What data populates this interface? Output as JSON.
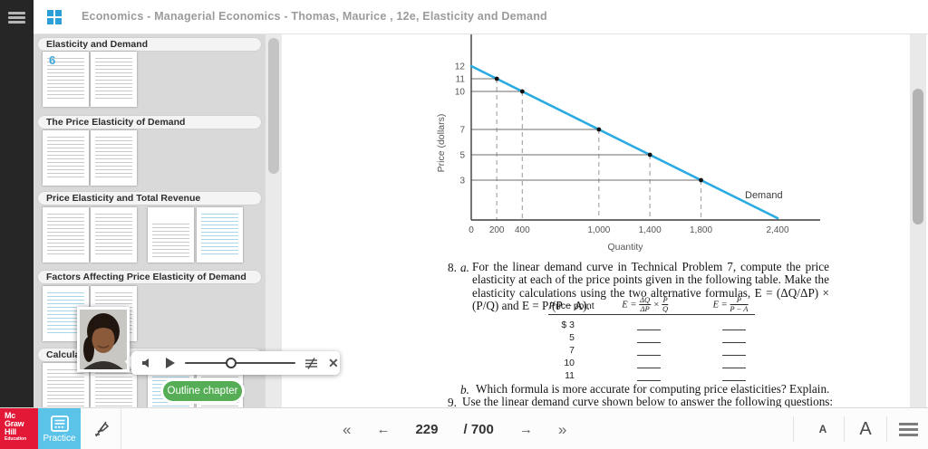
{
  "topbar": {
    "title": "Economics - Managerial Economics - Thomas, Maurice , 12e, Elasticity and Demand"
  },
  "sidebar": {
    "sections": [
      {
        "title": "Elasticity and Demand",
        "chapter_label": "6"
      },
      {
        "title": "The Price Elasticity of Demand"
      },
      {
        "title": "Price Elasticity and Total Revenue"
      },
      {
        "title": "Factors Affecting Price Elasticity of Demand"
      },
      {
        "title": "Calcula"
      }
    ]
  },
  "video": {
    "outline_button_label": "Outline chapter",
    "close_glyph": "✕"
  },
  "content": {
    "problem8_number": "8.",
    "problem8_part": "a.",
    "problem8_text": "For the linear demand curve in Technical Problem 7, compute the price elasticity at each of the price points given in the following table. Make the elasticity calculations using the two alternative formulas, E = (ΔQ/ΔP) × (P/Q) and E = P/(P − A).",
    "table": {
      "price_header": "Price point",
      "formula1": {
        "prefix": "E =",
        "num1": "ΔQ",
        "den1": "ΔP",
        "op": "×",
        "num2": "P",
        "den2": "Q"
      },
      "formula2": {
        "prefix": "E =",
        "num": "P",
        "den": "P − A"
      },
      "rows": [
        {
          "price": "$ 3"
        },
        {
          "price": "5"
        },
        {
          "price": "7"
        },
        {
          "price": "10"
        },
        {
          "price": "11"
        }
      ]
    },
    "problem8b_label": "b.",
    "problem8b_text": "Which formula is more accurate for computing price elasticities? Explain.",
    "problem9_number": "9.",
    "problem9_text": "Use the linear demand curve shown below to answer the following questions:"
  },
  "bottombar": {
    "logo_lines": [
      "Mc",
      "Graw",
      "Hill",
      "Education"
    ],
    "practice_label": "Practice",
    "nav": {
      "first_glyph": "«",
      "prev_glyph": "←",
      "page_current": "229",
      "page_separator": "/",
      "page_total": "700",
      "next_glyph": "→",
      "last_glyph": "»"
    },
    "font_small_label": "A",
    "font_large_label": "A"
  },
  "colors": {
    "demand_line_blue": "#29abe2",
    "practice_blue": "#5bc3e8",
    "logo_red": "#e21836",
    "outline_green": "#55ae55"
  },
  "chart_data": {
    "type": "line",
    "title": "",
    "xlabel": "Quantity",
    "ylabel": "Price (dollars)",
    "grid": false,
    "xlim": [
      0,
      2730
    ],
    "ylim": [
      0,
      14.5
    ],
    "line_color": "#29abe2",
    "annotation": "Demand",
    "series": [
      {
        "name": "Demand",
        "x": [
          0,
          2400
        ],
        "y": [
          12,
          0
        ]
      }
    ],
    "marked_points": [
      {
        "q": 200,
        "p": 11
      },
      {
        "q": 400,
        "p": 10
      },
      {
        "q": 1000,
        "p": 7
      },
      {
        "q": 1400,
        "p": 5
      },
      {
        "q": 1800,
        "p": 3
      }
    ],
    "x_ticks": [
      {
        "v": 0,
        "label": "0"
      },
      {
        "v": 200,
        "label": "200"
      },
      {
        "v": 400,
        "label": "400"
      },
      {
        "v": 1000,
        "label": "1,000"
      },
      {
        "v": 1400,
        "label": "1,400"
      },
      {
        "v": 1800,
        "label": "1,800"
      },
      {
        "v": 2400,
        "label": "2,400"
      }
    ],
    "y_ticks": [
      {
        "v": 12,
        "label": "12"
      },
      {
        "v": 11,
        "label": "11"
      },
      {
        "v": 10,
        "label": "10"
      },
      {
        "v": 7,
        "label": "7"
      },
      {
        "v": 5,
        "label": "5"
      },
      {
        "v": 3,
        "label": "3"
      }
    ]
  }
}
